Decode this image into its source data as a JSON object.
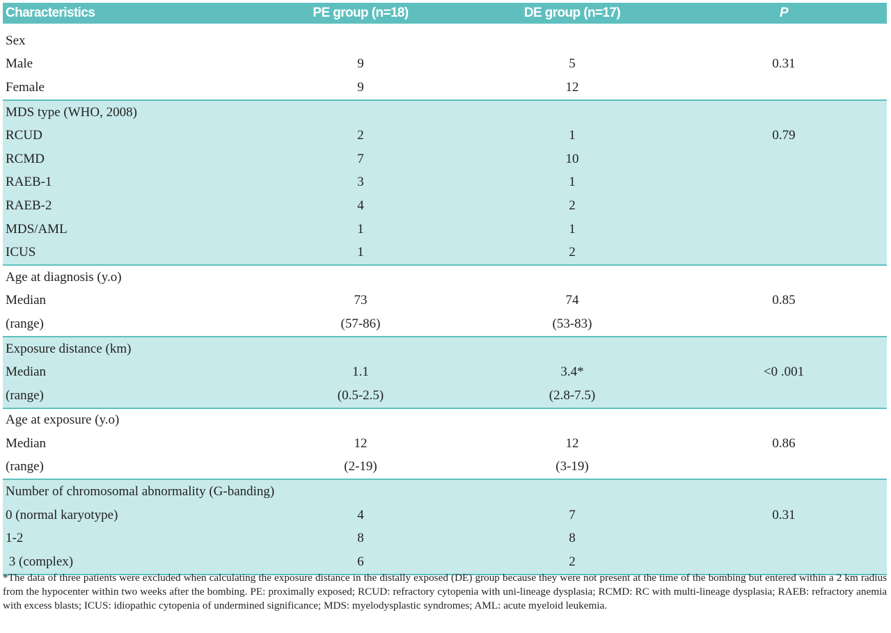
{
  "table": {
    "header": [
      "Characteristics",
      "PE group (n=18)",
      "DE group (n=17)",
      "P"
    ],
    "groups": [
      {
        "rows": [
          {
            "label": "Sex"
          },
          {
            "label": "Male",
            "pe": "9",
            "de": "5",
            "p": "0.31"
          },
          {
            "label": "Female",
            "pe": "9",
            "de": "12"
          }
        ]
      },
      {
        "rows": [
          {
            "label": "MDS type (WHO, 2008)"
          },
          {
            "label": "RCUD",
            "pe": "2",
            "de": "1",
            "p": "0.79"
          },
          {
            "label": "RCMD",
            "pe": "7",
            "de": "10"
          },
          {
            "label": "RAEB-1",
            "pe": "3",
            "de": "1"
          },
          {
            "label": "RAEB-2",
            "pe": "4",
            "de": "2"
          },
          {
            "label": "MDS/AML",
            "pe": "1",
            "de": "1"
          },
          {
            "label": "ICUS",
            "pe": "1",
            "de": "2"
          }
        ]
      },
      {
        "rows": [
          {
            "label": "Age at diagnosis (y.o)"
          },
          {
            "label": "Median",
            "pe": "73",
            "de": "74",
            "p": "0.85"
          },
          {
            "label": "(range)",
            "pe": "(57-86)",
            "de": "(53-83)"
          }
        ]
      },
      {
        "rows": [
          {
            "label": "Exposure distance (km)"
          },
          {
            "label": "Median",
            "pe": "1.1",
            "de": "3.4*",
            "p": "<0 .001"
          },
          {
            "label": "(range)",
            "pe": "(0.5-2.5)",
            "de": "(2.8-7.5)"
          }
        ]
      },
      {
        "rows": [
          {
            "label": "Age at exposure (y.o)"
          },
          {
            "label": "Median",
            "pe": "12",
            "de": "12",
            "p": "0.86"
          },
          {
            "label": "(range)",
            "pe": "(2-19)",
            "de": "(3-19)"
          }
        ]
      },
      {
        "rows": [
          {
            "label": "Number of chromosomal abnormality (G-banding)"
          },
          {
            "label": "0 (normal karyotype)",
            "pe": "4",
            "de": "7",
            "p": "0.31"
          },
          {
            "label": "1-2",
            "pe": "8",
            "de": "8"
          },
          {
            "label": " 3 (complex)",
            "pe": "6",
            "de": "2"
          }
        ]
      }
    ],
    "footnote": "*The data of three patients were excluded when calculating the exposure distance in the distally exposed (DE) group because they were not present at the time of the bombing but entered within a 2 km radius from the hypocenter within two weeks after the bombing. PE: proximally exposed; RCUD: refractory cytopenia with uni-lineage dysplasia; RCMD: RC with multi-lineage dysplasia; RAEB: refractory anemia with excess blasts; ICUS: idiopathic cytopenia of undermined significance; MDS: myelodysplastic syndromes; AML: acute myeloid leukemia."
  }
}
